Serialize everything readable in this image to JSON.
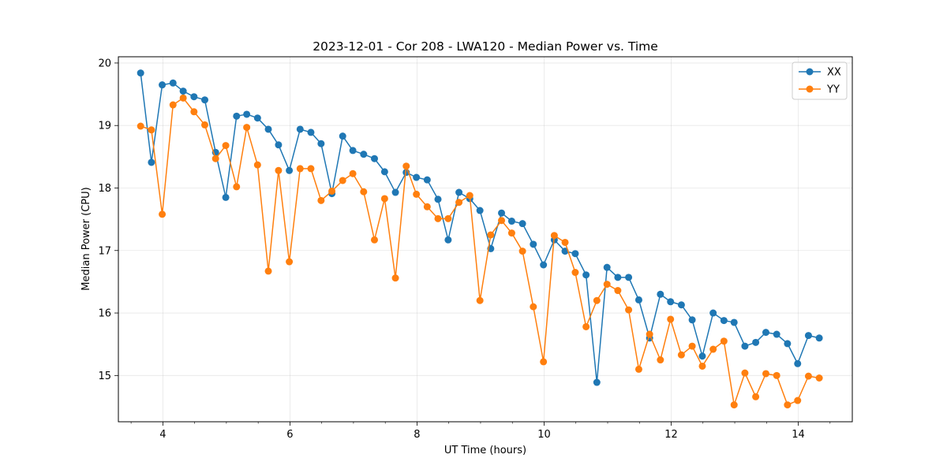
{
  "chart_data": {
    "type": "line",
    "title": "2023-12-01 - Cor 208 - LWA120 - Median Power vs. Time",
    "xlabel": "UT Time (hours)",
    "ylabel": "Median Power (CPU)",
    "xlim": [
      3.3,
      14.85
    ],
    "ylim": [
      14.26,
      20.1
    ],
    "xticks": [
      4,
      6,
      8,
      10,
      12,
      14
    ],
    "xtick_labels": [
      "4",
      "6",
      "8",
      "10",
      "12",
      "14"
    ],
    "yticks": [
      15,
      16,
      17,
      18,
      19,
      20
    ],
    "ytick_labels": [
      "15",
      "16",
      "17",
      "18",
      "19",
      "20"
    ],
    "grid": true,
    "legend_position": "top-right",
    "x": [
      3.65,
      3.82,
      3.99,
      4.16,
      4.32,
      4.49,
      4.66,
      4.83,
      4.99,
      5.16,
      5.32,
      5.49,
      5.66,
      5.82,
      5.99,
      6.16,
      6.33,
      6.49,
      6.66,
      6.83,
      6.99,
      7.16,
      7.33,
      7.49,
      7.66,
      7.83,
      7.99,
      8.16,
      8.33,
      8.49,
      8.66,
      8.83,
      8.99,
      9.16,
      9.33,
      9.49,
      9.66,
      9.83,
      9.99,
      10.16,
      10.33,
      10.49,
      10.66,
      10.83,
      10.99,
      11.16,
      11.33,
      11.49,
      11.66,
      11.83,
      11.99,
      12.16,
      12.33,
      12.49,
      12.66,
      12.83,
      12.99,
      13.16,
      13.33,
      13.49,
      13.66,
      13.83,
      13.99,
      14.16,
      14.33
    ],
    "series": [
      {
        "name": "XX",
        "color": "#1f77b4",
        "values": [
          19.84,
          18.41,
          19.65,
          19.68,
          19.55,
          19.46,
          19.41,
          18.57,
          17.85,
          19.15,
          19.18,
          19.12,
          18.94,
          18.69,
          18.28,
          18.94,
          18.89,
          18.71,
          17.91,
          18.83,
          18.6,
          18.54,
          18.47,
          18.26,
          17.93,
          18.25,
          18.17,
          18.13,
          17.82,
          17.17,
          17.93,
          17.83,
          17.64,
          17.03,
          17.6,
          17.47,
          17.43,
          17.1,
          16.77,
          17.17,
          16.99,
          16.95,
          16.61,
          14.89,
          16.73,
          16.57,
          16.57,
          16.21,
          15.6,
          16.3,
          16.18,
          16.13,
          15.89,
          15.31,
          16.0,
          15.88,
          15.85,
          15.47,
          15.53,
          15.69,
          15.66,
          15.51,
          15.19,
          15.64,
          15.6
        ]
      },
      {
        "name": "YY",
        "color": "#ff7f0e",
        "values": [
          18.99,
          18.93,
          17.58,
          19.33,
          19.44,
          19.22,
          19.01,
          18.47,
          18.68,
          18.02,
          18.97,
          18.37,
          16.67,
          18.28,
          16.82,
          18.31,
          18.31,
          17.8,
          17.95,
          18.12,
          18.23,
          17.94,
          17.17,
          17.83,
          16.56,
          18.35,
          17.9,
          17.7,
          17.51,
          17.51,
          17.77,
          17.88,
          16.2,
          17.25,
          17.48,
          17.28,
          16.99,
          16.1,
          15.22,
          17.24,
          17.13,
          16.65,
          15.78,
          16.2,
          16.46,
          16.36,
          16.05,
          15.1,
          15.66,
          15.25,
          15.9,
          15.33,
          15.47,
          15.15,
          15.42,
          15.55,
          14.53,
          15.04,
          14.66,
          15.03,
          15.0,
          14.53,
          14.6,
          14.99,
          14.96
        ]
      }
    ]
  }
}
